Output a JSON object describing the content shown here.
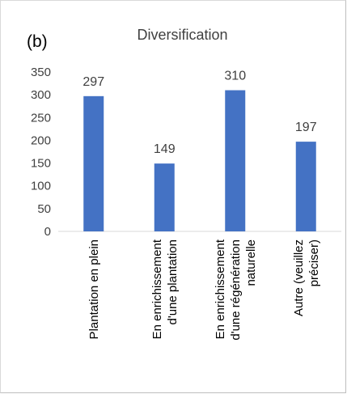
{
  "panel_label": "(b)",
  "chart_data": {
    "type": "bar",
    "title": "Diversification",
    "categories": [
      [
        "Plantation en plein"
      ],
      [
        "En enrichissement",
        "d'une plantation"
      ],
      [
        "En enrichissement",
        "d'une régénération",
        "naturelle"
      ],
      [
        "Autre (veuillez",
        "préciser)"
      ]
    ],
    "values": [
      297,
      149,
      310,
      197
    ],
    "data_labels": [
      "297",
      "149",
      "310",
      "197"
    ],
    "yticks": [
      "0",
      "50",
      "100",
      "150",
      "200",
      "250",
      "300",
      "350"
    ],
    "ylim": [
      0,
      350
    ],
    "grid": false,
    "bar_color": "#4472c4"
  }
}
